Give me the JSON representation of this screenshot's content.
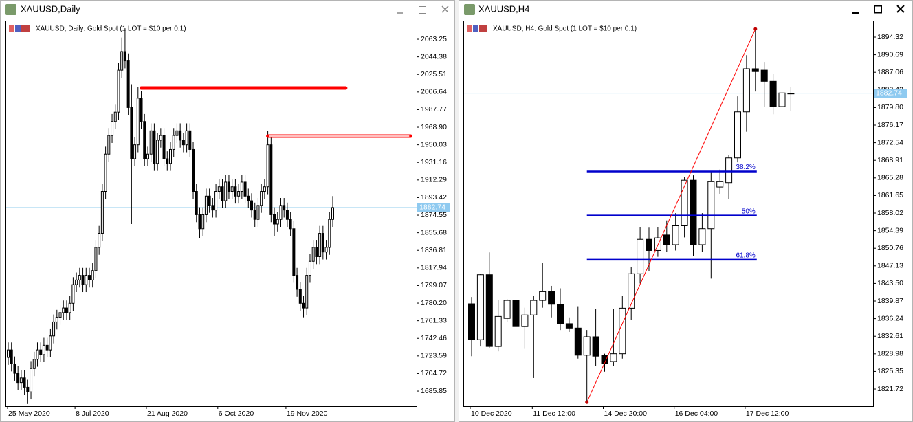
{
  "windows": [
    {
      "title": "XAUUSD,Daily"
    },
    {
      "title": "XAUUSD,H4"
    }
  ],
  "chart_data": [
    {
      "type": "candlestick",
      "title": "XAUUSD, Daily:  Gold Spot (1 LOT = $10 per 0.1)",
      "categories": [
        "25 May 2020",
        null,
        null,
        null,
        null,
        null,
        null,
        null,
        null,
        null,
        null,
        null,
        null,
        null,
        null,
        null,
        null,
        null,
        null,
        null,
        null,
        "8 Jul 2020",
        null,
        null,
        null,
        null,
        null,
        null,
        null,
        null,
        null,
        null,
        null,
        null,
        null,
        null,
        null,
        null,
        null,
        null,
        null,
        null,
        null,
        "21 Aug 2020",
        null,
        null,
        null,
        null,
        null,
        null,
        null,
        null,
        null,
        null,
        null,
        null,
        null,
        null,
        null,
        null,
        null,
        null,
        null,
        null,
        null,
        "6 Oct 2020",
        null,
        null,
        null,
        null,
        null,
        null,
        null,
        null,
        null,
        null,
        null,
        null,
        null,
        null,
        null,
        null,
        null,
        null,
        null,
        null,
        "19 Nov 2020",
        null,
        null,
        null,
        null,
        null,
        null,
        null,
        null,
        null,
        null,
        null,
        null,
        null,
        null
      ],
      "open": [
        1722,
        1730,
        1715,
        1705,
        1695,
        1700,
        1690,
        1685,
        1710,
        1720,
        1730,
        1725,
        1735,
        1730,
        1745,
        1760,
        1765,
        1770,
        1775,
        1770,
        1780,
        1800,
        1805,
        1810,
        1800,
        1810,
        1805,
        1815,
        1840,
        1855,
        1900,
        1940,
        1960,
        1975,
        1985,
        2030,
        2050,
        2040,
        1990,
        1935,
        1950,
        2000,
        1975,
        1935,
        1940,
        1965,
        1930,
        1955,
        1960,
        1935,
        1930,
        1945,
        1960,
        1965,
        1955,
        1950,
        1965,
        1945,
        1900,
        1875,
        1860,
        1875,
        1895,
        1885,
        1880,
        1900,
        1905,
        1890,
        1910,
        1900,
        1905,
        1895,
        1900,
        1910,
        1895,
        1890,
        1880,
        1870,
        1885,
        1900,
        1905,
        1950,
        1875,
        1865,
        1870,
        1885,
        1880,
        1870,
        1860,
        1810,
        1795,
        1780,
        1775,
        1810,
        1825,
        1840,
        1830,
        1855,
        1835,
        1840,
        1870
      ],
      "high": [
        1738,
        1738,
        1723,
        1713,
        1708,
        1708,
        1698,
        1718,
        1728,
        1738,
        1738,
        1743,
        1743,
        1753,
        1768,
        1773,
        1778,
        1783,
        1783,
        1788,
        1808,
        1813,
        1818,
        1818,
        1818,
        1818,
        1823,
        1848,
        1863,
        1908,
        1948,
        1968,
        1983,
        1993,
        2038,
        2065,
        2075,
        2048,
        2015,
        1958,
        2012,
        2008,
        1983,
        1948,
        1973,
        1973,
        1963,
        1968,
        1968,
        1943,
        1953,
        1968,
        1973,
        1973,
        1963,
        1973,
        1973,
        1953,
        1908,
        1883,
        1883,
        1903,
        1903,
        1893,
        1908,
        1913,
        1913,
        1918,
        1918,
        1913,
        1913,
        1908,
        1918,
        1918,
        1903,
        1898,
        1888,
        1893,
        1908,
        1913,
        1965,
        1958,
        1883,
        1878,
        1893,
        1893,
        1888,
        1878,
        1868,
        1818,
        1803,
        1788,
        1818,
        1833,
        1848,
        1848,
        1863,
        1863,
        1848,
        1878,
        1895
      ],
      "low": [
        1714,
        1707,
        1697,
        1687,
        1687,
        1682,
        1672,
        1677,
        1702,
        1712,
        1717,
        1717,
        1722,
        1722,
        1737,
        1752,
        1757,
        1762,
        1762,
        1762,
        1772,
        1792,
        1797,
        1792,
        1792,
        1797,
        1797,
        1807,
        1832,
        1847,
        1892,
        1932,
        1952,
        1967,
        1977,
        2022,
        2032,
        1982,
        1865,
        1927,
        1942,
        1967,
        1927,
        1927,
        1932,
        1922,
        1922,
        1947,
        1927,
        1922,
        1922,
        1937,
        1952,
        1947,
        1942,
        1942,
        1937,
        1892,
        1867,
        1850,
        1852,
        1867,
        1877,
        1872,
        1872,
        1892,
        1882,
        1882,
        1892,
        1892,
        1887,
        1887,
        1892,
        1887,
        1882,
        1872,
        1862,
        1862,
        1877,
        1892,
        1897,
        1867,
        1852,
        1857,
        1862,
        1872,
        1862,
        1852,
        1802,
        1787,
        1772,
        1765,
        1767,
        1802,
        1817,
        1822,
        1822,
        1827,
        1827,
        1832,
        1862
      ],
      "close": [
        1730,
        1715,
        1705,
        1695,
        1700,
        1690,
        1685,
        1710,
        1720,
        1730,
        1725,
        1735,
        1730,
        1745,
        1760,
        1765,
        1770,
        1775,
        1770,
        1780,
        1800,
        1805,
        1810,
        1800,
        1810,
        1805,
        1815,
        1840,
        1855,
        1900,
        1940,
        1960,
        1975,
        1985,
        2030,
        2050,
        2040,
        1990,
        1935,
        1950,
        2000,
        1975,
        1935,
        1940,
        1965,
        1930,
        1955,
        1960,
        1935,
        1930,
        1945,
        1960,
        1965,
        1955,
        1950,
        1965,
        1945,
        1900,
        1875,
        1860,
        1875,
        1895,
        1885,
        1880,
        1900,
        1905,
        1890,
        1910,
        1900,
        1905,
        1895,
        1900,
        1910,
        1895,
        1890,
        1880,
        1870,
        1885,
        1900,
        1905,
        1950,
        1875,
        1865,
        1870,
        1885,
        1880,
        1870,
        1860,
        1810,
        1795,
        1780,
        1775,
        1810,
        1825,
        1840,
        1830,
        1855,
        1835,
        1840,
        1870,
        1882.74
      ],
      "up_color": "#ffffff",
      "down_color": "#000000",
      "ylim": [
        1670.4,
        2081.7
      ],
      "yticks": [
        2063.25,
        2044.38,
        2025.51,
        2006.64,
        1987.77,
        {
          "value": 1968.9,
          "label": "1968.90"
        },
        1950.03,
        1931.16,
        1912.29,
        1893.42,
        1874.55,
        1855.68,
        1836.81,
        1817.94,
        1799.07,
        {
          "value": 1780.2,
          "label": "1780.20"
        },
        1761.33,
        1742.46,
        1723.59,
        1704.72,
        1685.85
      ],
      "current_price": 1882.74,
      "hlines": [
        {
          "value": 2010.9,
          "x": [
            41,
            104
          ],
          "color": "#ff0000"
        },
        {
          "value": 1959.3,
          "x": [
            80,
            124
          ],
          "color": "#ff0000"
        }
      ]
    },
    {
      "type": "candlestick",
      "title": "XAUUSD, H4:  Gold Spot (1 LOT = $10 per 0.1)",
      "categories": [
        "10 Dec 2020",
        null,
        null,
        null,
        null,
        null,
        null,
        "11 Dec 12:00",
        null,
        null,
        null,
        null,
        null,
        null,
        null,
        "14 Dec 20:00",
        null,
        null,
        null,
        null,
        null,
        null,
        null,
        "16 Dec 04:00",
        null,
        null,
        null,
        null,
        null,
        null,
        null,
        "17 Dec 12:00",
        null,
        null,
        null,
        null,
        null
      ],
      "open": [
        1839.3,
        1831.9,
        1845.3,
        1830.5,
        1836.3,
        1840.0,
        1834.6,
        1837.0,
        1840.0,
        1841.8,
        1839.2,
        1835.2,
        1834.3,
        1828.7,
        1832.5,
        1828.6,
        1827.4,
        1829.0,
        1838.4,
        1845.5,
        1852.6,
        1850.3,
        1853.5,
        1851.5,
        1855.4,
        1864.8,
        1851.5,
        1854.8,
        1863.4,
        1864.3,
        1869.4,
        1878.9,
        1887.8,
        1887.5,
        1885.2,
        1880.0,
        1882.7
      ],
      "high": [
        1840.7,
        1845.5,
        1849.9,
        1840.1,
        1840.3,
        1840.5,
        1838.5,
        1841.0,
        1847.8,
        1843.0,
        1842.5,
        1836.5,
        1838.8,
        1833.9,
        1838.2,
        1829.0,
        1838.2,
        1841.0,
        1846.9,
        1855.1,
        1855.0,
        1855.1,
        1856.5,
        1858.0,
        1865.4,
        1865.8,
        1858.0,
        1866.5,
        1867.0,
        1870.0,
        1882.1,
        1890.6,
        1896.0,
        1889.2,
        1886.7,
        1886.7,
        1884.0
      ],
      "low": [
        1828.5,
        1830.5,
        1830.2,
        1829.5,
        1835.5,
        1833.0,
        1830.0,
        1824.0,
        1838.5,
        1836.5,
        1833.9,
        1833.5,
        1828.0,
        1819.0,
        1826.5,
        1825.3,
        1826.5,
        1828.0,
        1836.0,
        1843.5,
        1846.0,
        1849.0,
        1850.0,
        1850.3,
        1853.0,
        1849.2,
        1850.0,
        1844.5,
        1862.0,
        1861.0,
        1868.5,
        1874.8,
        1883.1,
        1880.0,
        1878.4,
        1879.0,
        1879.0
      ],
      "close": [
        1831.9,
        1845.3,
        1830.5,
        1836.7,
        1840.0,
        1834.6,
        1837.0,
        1840.0,
        1841.8,
        1839.2,
        1835.2,
        1834.3,
        1828.7,
        1832.5,
        1828.5,
        1826.9,
        1829.0,
        1838.4,
        1845.5,
        1852.6,
        1850.3,
        1852.9,
        1851.5,
        1855.4,
        1864.8,
        1851.5,
        1854.8,
        1864.5,
        1864.5,
        1869.4,
        1878.9,
        1887.8,
        1887.2,
        1885.2,
        1880.0,
        1882.8,
        1882.74
      ],
      "up_color": "#ffffff",
      "down_color": "#000000",
      "ylim": [
        1818.32,
        1897.44
      ],
      "yticks": [
        1894.32,
        1890.69,
        1887.06,
        1883.43,
        {
          "value": 1879.8,
          "label": "1879.80"
        },
        1876.17,
        1872.54,
        1868.91,
        1865.28,
        1861.65,
        1858.02,
        1854.39,
        1850.76,
        1847.13,
        {
          "value": 1843.5,
          "label": "1843.50"
        },
        1839.87,
        1836.24,
        1832.61,
        1828.98,
        1825.35,
        1821.72
      ],
      "current_price": 1882.74,
      "fib": {
        "from": {
          "index": 13,
          "value": 1819.0
        },
        "to": {
          "index": 32,
          "value": 1896.0
        },
        "line_color": "#ff0000",
        "level_color": "#0000cc",
        "levels": [
          {
            "value": 1866.6,
            "label": "38.2%"
          },
          {
            "value": 1857.5,
            "label": "50%"
          },
          {
            "value": 1848.4,
            "label": "61.8%"
          }
        ]
      }
    }
  ]
}
